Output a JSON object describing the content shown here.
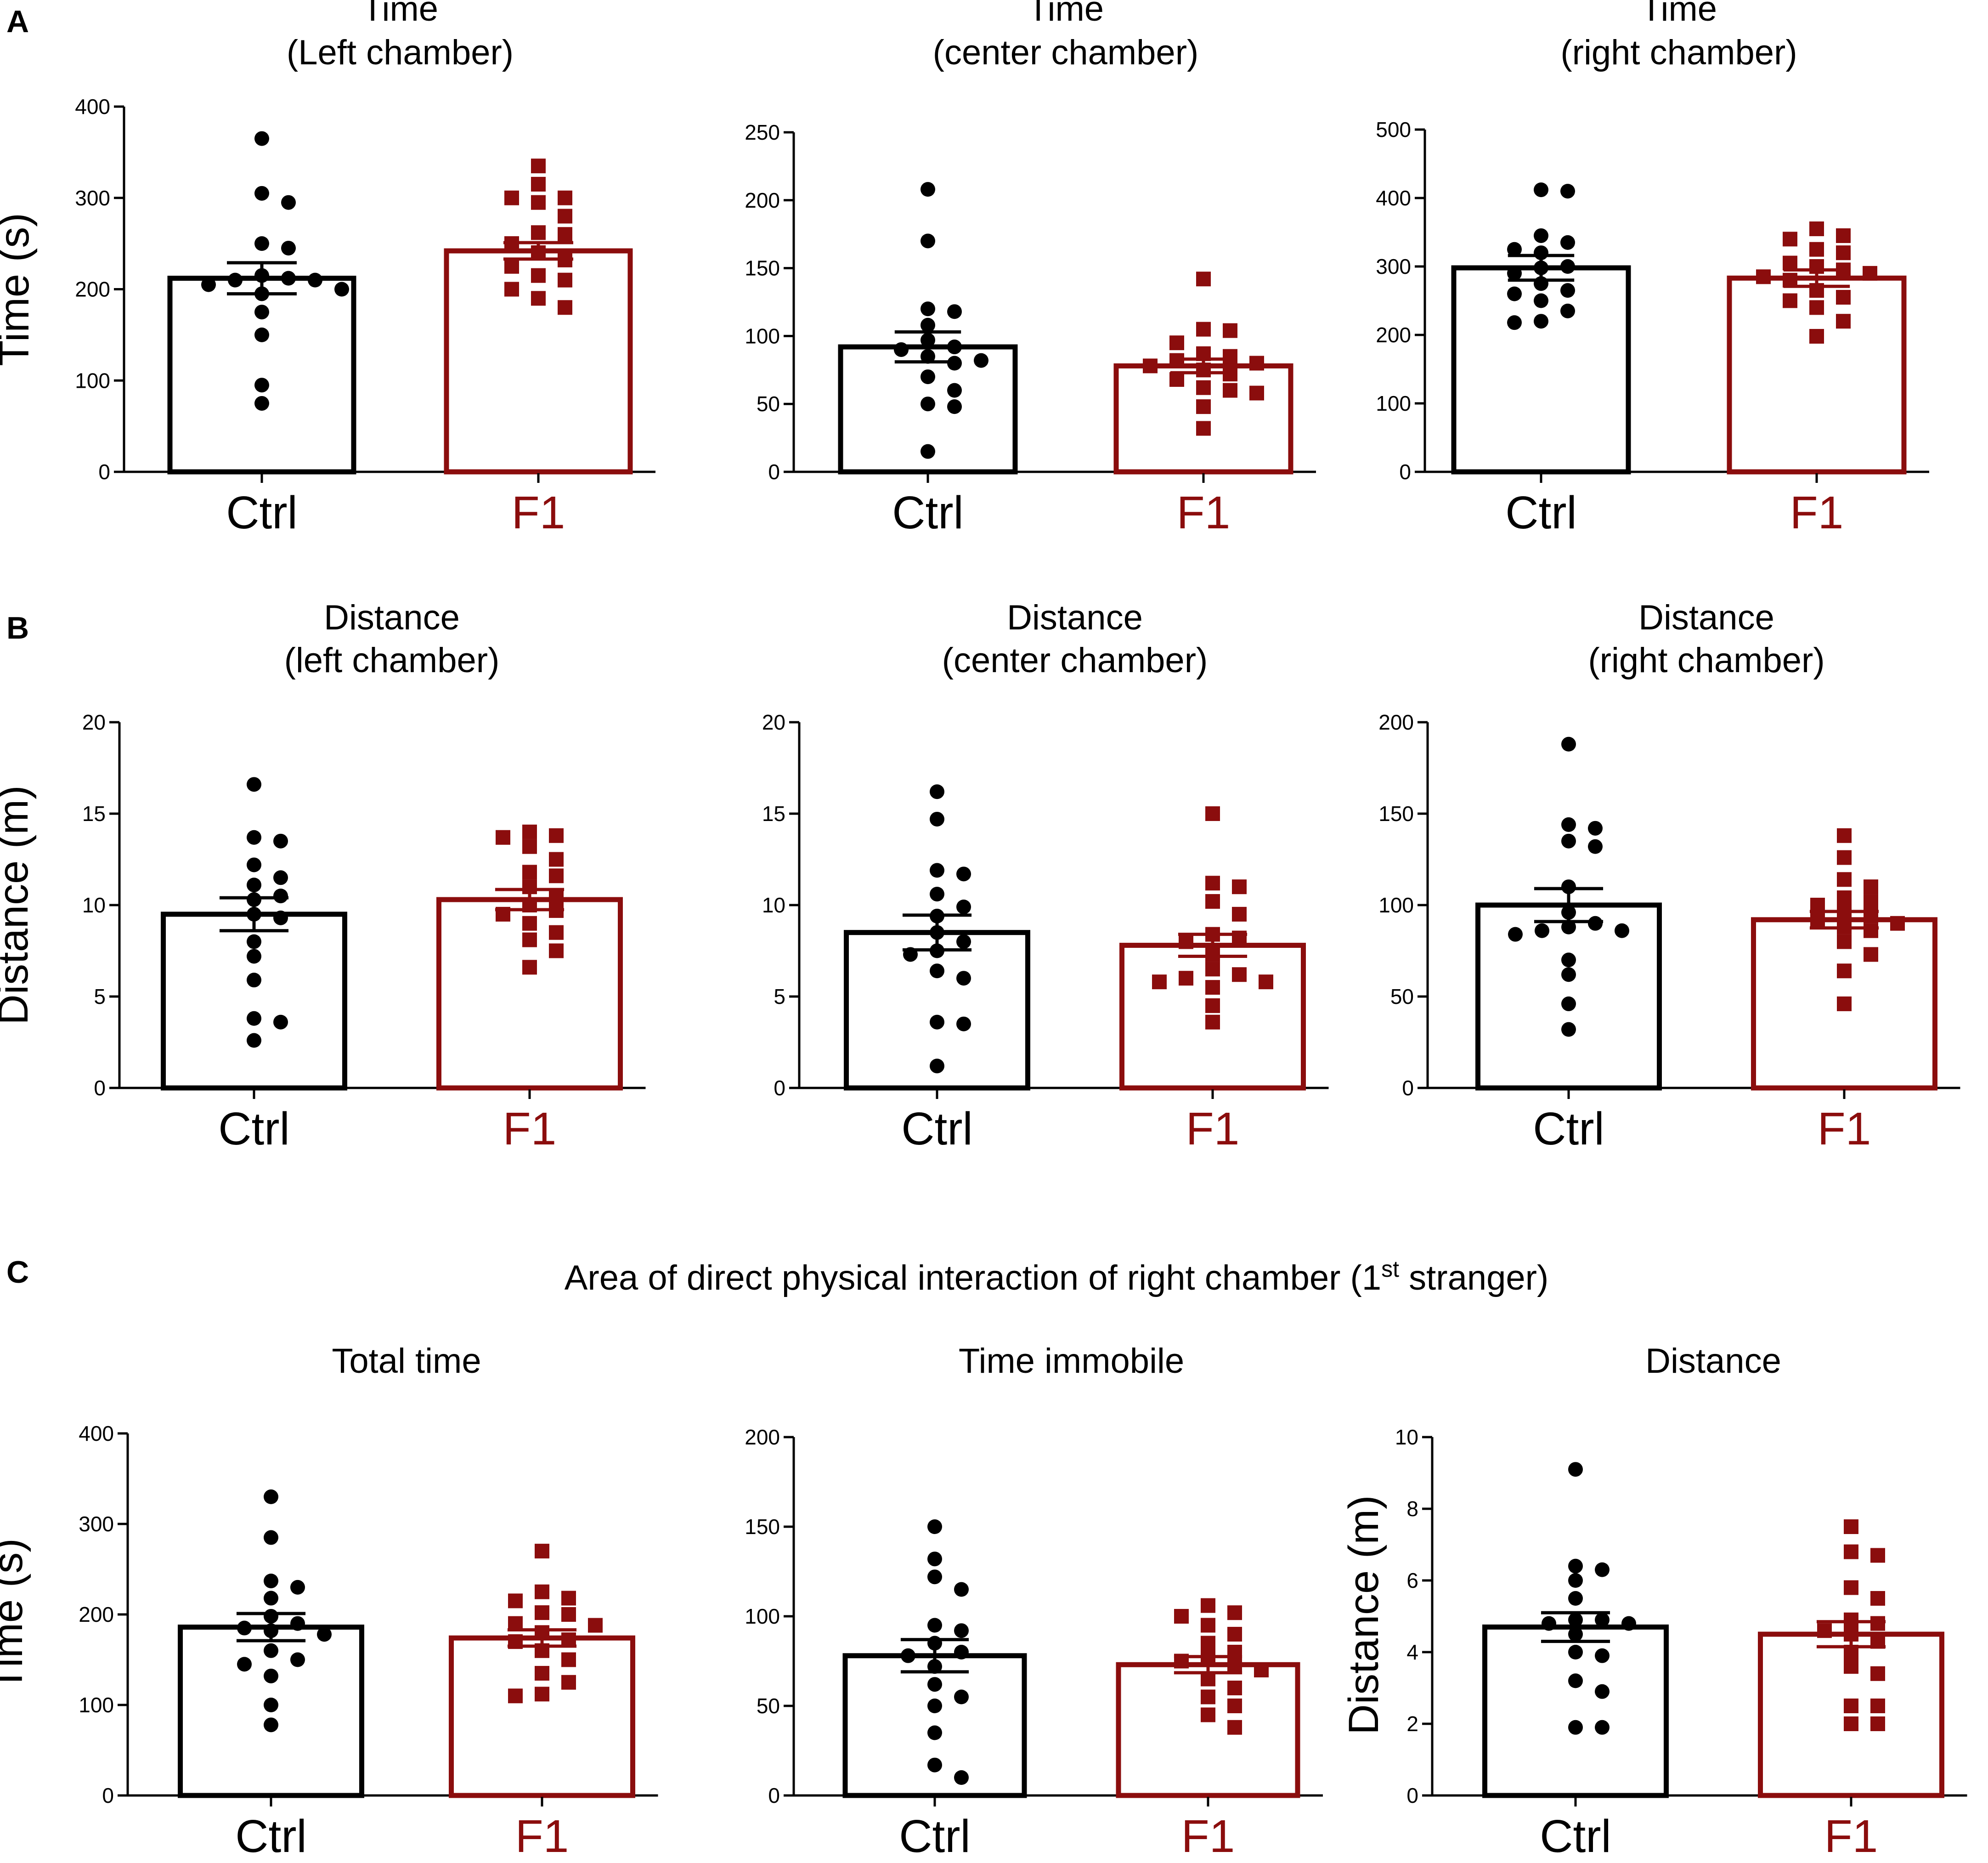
{
  "colors": {
    "ctrl": "#000000",
    "f1": "#8b0d0d"
  },
  "panel_labels": [
    "A",
    "B",
    "C"
  ],
  "section_c_title": {
    "main": "Area of direct physical interaction of right chamber (1",
    "sup": "st",
    "tail": " stranger)"
  },
  "chart_data": [
    {
      "type": "bar",
      "panel": "A",
      "title": [
        "Time",
        "(Left chamber)"
      ],
      "ylabel": "Time (s)",
      "ylim": [
        0,
        400
      ],
      "yticks": [
        0,
        100,
        200,
        300,
        400
      ],
      "categories": [
        "Ctrl",
        "F1"
      ],
      "series": [
        {
          "name": "Ctrl",
          "mean": 212,
          "sem": 17,
          "points": [
            365,
            305,
            295,
            250,
            245,
            215,
            212,
            210,
            210,
            205,
            200,
            195,
            175,
            150,
            95,
            75
          ]
        },
        {
          "name": "F1",
          "mean": 242,
          "sem": 9,
          "points": [
            335,
            315,
            300,
            300,
            295,
            280,
            262,
            260,
            250,
            240,
            232,
            225,
            215,
            210,
            200,
            190,
            180
          ]
        }
      ]
    },
    {
      "type": "bar",
      "panel": "A",
      "title": [
        "Time",
        "(center chamber)"
      ],
      "ylabel": "",
      "ylim": [
        0,
        250
      ],
      "yticks": [
        0,
        50,
        100,
        150,
        200,
        250
      ],
      "categories": [
        "Ctrl",
        "F1"
      ],
      "series": [
        {
          "name": "Ctrl",
          "mean": 92,
          "sem": 11,
          "points": [
            208,
            170,
            120,
            118,
            108,
            97,
            92,
            90,
            85,
            82,
            80,
            70,
            60,
            50,
            48,
            15
          ]
        },
        {
          "name": "F1",
          "mean": 78,
          "sem": 5,
          "points": [
            142,
            105,
            104,
            95,
            87,
            85,
            82,
            80,
            78,
            75,
            72,
            68,
            62,
            60,
            58,
            48,
            32
          ]
        }
      ]
    },
    {
      "type": "bar",
      "panel": "A",
      "title": [
        "Time",
        "(right chamber)"
      ],
      "ylabel": "",
      "ylim": [
        0,
        500
      ],
      "yticks": [
        0,
        100,
        200,
        300,
        400,
        500
      ],
      "categories": [
        "Ctrl",
        "F1"
      ],
      "series": [
        {
          "name": "Ctrl",
          "mean": 298,
          "sem": 18,
          "points": [
            412,
            410,
            345,
            335,
            325,
            320,
            300,
            298,
            290,
            275,
            265,
            260,
            250,
            235,
            220,
            218
          ]
        },
        {
          "name": "F1",
          "mean": 283,
          "sem": 12,
          "points": [
            355,
            345,
            340,
            325,
            320,
            305,
            300,
            295,
            290,
            285,
            280,
            265,
            255,
            250,
            240,
            220,
            198
          ]
        }
      ]
    },
    {
      "type": "bar",
      "panel": "B",
      "title": [
        "Distance",
        "(left chamber)"
      ],
      "ylabel": "Distance (m)",
      "ylim": [
        0,
        20
      ],
      "yticks": [
        0,
        5,
        10,
        15,
        20
      ],
      "categories": [
        "Ctrl",
        "F1"
      ],
      "series": [
        {
          "name": "Ctrl",
          "mean": 9.5,
          "sem": 0.9,
          "points": [
            16.6,
            13.7,
            13.5,
            12.2,
            11.5,
            11.1,
            10.5,
            10.3,
            9.5,
            9.3,
            8.0,
            7.2,
            5.9,
            3.8,
            3.6,
            2.6
          ]
        },
        {
          "name": "F1",
          "mean": 10.3,
          "sem": 0.55,
          "points": [
            14.0,
            13.8,
            13.7,
            13.2,
            12.5,
            11.8,
            11.6,
            11.0,
            10.5,
            10.0,
            9.7,
            9.5,
            9.0,
            8.5,
            8.1,
            7.5,
            6.6
          ]
        }
      ]
    },
    {
      "type": "bar",
      "panel": "B",
      "title": [
        "Distance",
        "(center chamber)"
      ],
      "ylabel": "",
      "ylim": [
        0,
        20
      ],
      "yticks": [
        0,
        5,
        10,
        15,
        20
      ],
      "categories": [
        "Ctrl",
        "F1"
      ],
      "series": [
        {
          "name": "Ctrl",
          "mean": 8.5,
          "sem": 0.95,
          "points": [
            16.2,
            14.7,
            11.9,
            11.7,
            10.6,
            9.9,
            9.4,
            8.5,
            8.0,
            7.5,
            7.3,
            6.4,
            6.0,
            3.6,
            3.5,
            1.2
          ]
        },
        {
          "name": "F1",
          "mean": 7.8,
          "sem": 0.6,
          "points": [
            15.0,
            11.2,
            11.0,
            10.2,
            9.5,
            8.4,
            8.2,
            8.0,
            7.3,
            6.5,
            6.2,
            6.0,
            5.8,
            5.8,
            5.5,
            4.5,
            3.6
          ]
        }
      ]
    },
    {
      "type": "bar",
      "panel": "B",
      "title": [
        "Distance",
        "(right chamber)"
      ],
      "ylabel": "",
      "ylim": [
        0,
        200
      ],
      "yticks": [
        0,
        50,
        100,
        150,
        200
      ],
      "categories": [
        "Ctrl",
        "F1"
      ],
      "series": [
        {
          "name": "Ctrl",
          "mean": 100,
          "sem": 9,
          "points": [
            188,
            144,
            142,
            135,
            132,
            110,
            96,
            90,
            88,
            86,
            86,
            84,
            70,
            62,
            46,
            32
          ]
        },
        {
          "name": "F1",
          "mean": 92,
          "sem": 4.5,
          "points": [
            138,
            126,
            114,
            110,
            104,
            102,
            100,
            96,
            94,
            92,
            90,
            88,
            86,
            80,
            73,
            64,
            46
          ]
        }
      ]
    },
    {
      "type": "bar",
      "panel": "C",
      "title": [
        "Total time"
      ],
      "ylabel": "Time (s)",
      "ylim": [
        0,
        400
      ],
      "yticks": [
        0,
        100,
        200,
        300,
        400
      ],
      "categories": [
        "Ctrl",
        "F1"
      ],
      "series": [
        {
          "name": "Ctrl",
          "mean": 186,
          "sem": 15,
          "points": [
            330,
            285,
            237,
            230,
            218,
            198,
            190,
            185,
            182,
            178,
            160,
            150,
            145,
            132,
            100,
            78
          ]
        },
        {
          "name": "F1",
          "mean": 174,
          "sem": 9,
          "points": [
            270,
            225,
            218,
            215,
            202,
            200,
            190,
            188,
            180,
            172,
            170,
            160,
            150,
            135,
            125,
            112,
            110
          ]
        }
      ]
    },
    {
      "type": "bar",
      "panel": "C",
      "title": [
        "Time  immobile"
      ],
      "ylabel": "",
      "ylim": [
        0,
        200
      ],
      "yticks": [
        0,
        50,
        100,
        150,
        200
      ],
      "categories": [
        "Ctrl",
        "F1"
      ],
      "series": [
        {
          "name": "Ctrl",
          "mean": 78,
          "sem": 9,
          "points": [
            150,
            132,
            122,
            115,
            95,
            92,
            85,
            80,
            78,
            72,
            62,
            55,
            50,
            35,
            17,
            10
          ]
        },
        {
          "name": "F1",
          "mean": 73,
          "sem": 4.5,
          "points": [
            106,
            102,
            100,
            95,
            90,
            85,
            80,
            77,
            75,
            72,
            70,
            65,
            60,
            55,
            50,
            45,
            38
          ]
        }
      ]
    },
    {
      "type": "bar",
      "panel": "C",
      "title": [
        "Distance"
      ],
      "ylabel": "Distance (m)",
      "ylim": [
        0,
        10
      ],
      "yticks": [
        0,
        2,
        4,
        6,
        8,
        10
      ],
      "categories": [
        "Ctrl",
        "F1"
      ],
      "series": [
        {
          "name": "Ctrl",
          "mean": 4.7,
          "sem": 0.4,
          "points": [
            9.1,
            6.4,
            6.3,
            6.0,
            5.5,
            4.9,
            4.9,
            4.8,
            4.8,
            4.5,
            4.0,
            3.9,
            3.2,
            2.9,
            1.9,
            1.9
          ]
        },
        {
          "name": "F1",
          "mean": 4.5,
          "sem": 0.35,
          "points": [
            7.5,
            6.8,
            6.7,
            5.8,
            5.5,
            4.9,
            4.8,
            4.6,
            4.5,
            4.3,
            4.0,
            3.6,
            3.4,
            2.5,
            2.5,
            2.0,
            2.0
          ]
        }
      ]
    }
  ]
}
